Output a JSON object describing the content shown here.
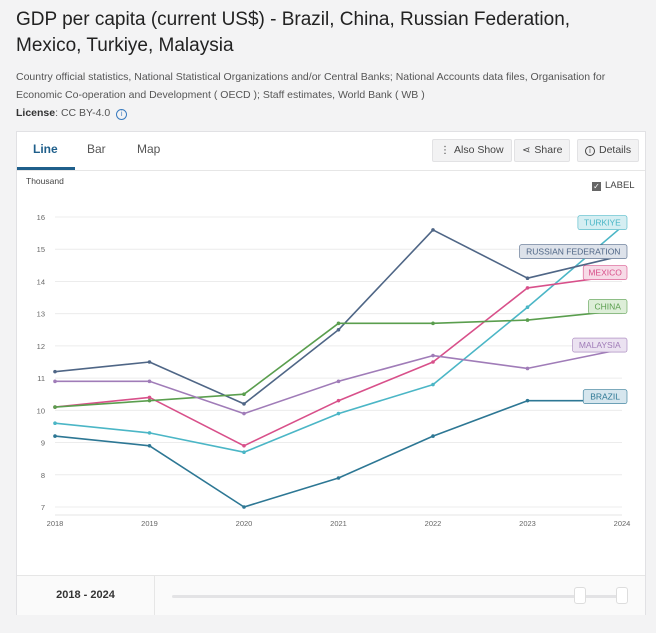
{
  "header": {
    "title": "GDP per capita (current US$) - Brazil, China, Russian Federation, Mexico, Turkiye, Malaysia",
    "source": "Country official statistics, National Statistical Organizations and/or Central Banks; National Accounts data files, Organisation for Economic Co-operation and Development ( OECD ); Staff estimates, World Bank ( WB )",
    "license_label": "License",
    "license_value": ": CC BY-4.0"
  },
  "tabs": [
    {
      "label": "Line",
      "active": true
    },
    {
      "label": "Bar",
      "active": false
    },
    {
      "label": "Map",
      "active": false
    }
  ],
  "toolbar": {
    "also_show": "Also Show",
    "share": "Share",
    "details": "Details"
  },
  "chart_options": {
    "unit_label": "Thousand",
    "label_toggle": "LABEL",
    "label_checked": true
  },
  "footer": {
    "range_label": "2018 - 2024"
  },
  "chart_data": {
    "type": "line",
    "title": "GDP per capita (current US$)",
    "ylabel": "Thousand",
    "x": [
      2018,
      2019,
      2020,
      2021,
      2022,
      2023,
      2024
    ],
    "y_ticks": [
      7,
      8,
      9,
      10,
      11,
      12,
      13,
      14,
      15,
      16
    ],
    "ylim": [
      7,
      16
    ],
    "grid": true,
    "series": [
      {
        "name": "TURKIYE",
        "color": "#4bb6c6",
        "label_bg": "#d5eef2",
        "values": [
          9.6,
          9.3,
          8.7,
          9.9,
          10.8,
          13.2,
          15.7
        ]
      },
      {
        "name": "RUSSIAN FEDERATION",
        "color": "#4f6686",
        "label_bg": "#dde2ea",
        "values": [
          11.2,
          11.5,
          10.2,
          12.5,
          15.6,
          14.1,
          14.8
        ]
      },
      {
        "name": "MEXICO",
        "color": "#d8508a",
        "label_bg": "#f7dbe7",
        "values": [
          10.1,
          10.4,
          8.9,
          10.3,
          11.5,
          13.8,
          14.2
        ]
      },
      {
        "name": "CHINA",
        "color": "#5a9e4e",
        "label_bg": "#ddeed8",
        "values": [
          10.1,
          10.3,
          10.5,
          12.7,
          12.7,
          12.8,
          13.1
        ]
      },
      {
        "name": "MALAYSIA",
        "color": "#a07cb8",
        "label_bg": "#ebe2f1",
        "values": [
          10.9,
          10.9,
          9.9,
          10.9,
          11.7,
          11.3,
          11.9
        ]
      },
      {
        "name": "BRAZIL",
        "color": "#2d7794",
        "label_bg": "#d6e6ee",
        "values": [
          9.2,
          8.9,
          7.0,
          7.9,
          9.2,
          10.3,
          10.3
        ]
      }
    ]
  }
}
